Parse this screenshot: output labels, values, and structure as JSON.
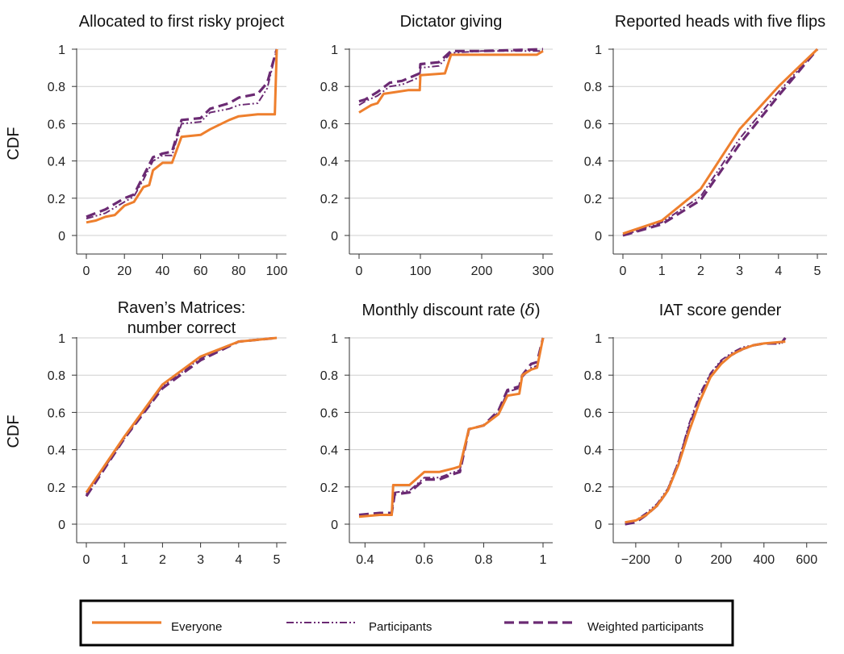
{
  "colors": {
    "everyone": "#ee7f2d",
    "participants": "#6b2a73",
    "weighted": "#6b2a73"
  },
  "y_axis_label": "CDF",
  "legend": {
    "placement": "bottom",
    "items": [
      {
        "label": "Everyone",
        "style": "solid"
      },
      {
        "label": "Participants",
        "style": "dashdot"
      },
      {
        "label": "Weighted participants",
        "style": "dashed"
      }
    ]
  },
  "chart_data": [
    {
      "type": "line",
      "title": "Allocated to first risky project",
      "xticks": [
        0,
        20,
        40,
        60,
        80,
        100
      ],
      "xlim": [
        0,
        100
      ],
      "ylim": [
        0,
        1
      ],
      "yticks": [
        0,
        0.2,
        0.4,
        0.6,
        0.8,
        1
      ],
      "series": [
        {
          "name": "Everyone",
          "points": [
            [
              0,
              0.07
            ],
            [
              5,
              0.08
            ],
            [
              10,
              0.1
            ],
            [
              15,
              0.11
            ],
            [
              20,
              0.16
            ],
            [
              25,
              0.18
            ],
            [
              30,
              0.26
            ],
            [
              33,
              0.27
            ],
            [
              35,
              0.35
            ],
            [
              40,
              0.39
            ],
            [
              45,
              0.39
            ],
            [
              50,
              0.53
            ],
            [
              60,
              0.54
            ],
            [
              65,
              0.57
            ],
            [
              75,
              0.62
            ],
            [
              80,
              0.64
            ],
            [
              90,
              0.65
            ],
            [
              95,
              0.65
            ],
            [
              99,
              0.65
            ],
            [
              100,
              1.0
            ]
          ]
        },
        {
          "name": "Participants",
          "points": [
            [
              0,
              0.09
            ],
            [
              10,
              0.12
            ],
            [
              20,
              0.18
            ],
            [
              25,
              0.21
            ],
            [
              30,
              0.3
            ],
            [
              35,
              0.4
            ],
            [
              40,
              0.43
            ],
            [
              45,
              0.43
            ],
            [
              50,
              0.6
            ],
            [
              60,
              0.61
            ],
            [
              65,
              0.66
            ],
            [
              75,
              0.68
            ],
            [
              80,
              0.7
            ],
            [
              90,
              0.71
            ],
            [
              95,
              0.79
            ],
            [
              100,
              1.0
            ]
          ]
        },
        {
          "name": "Weighted participants",
          "points": [
            [
              0,
              0.1
            ],
            [
              10,
              0.14
            ],
            [
              20,
              0.2
            ],
            [
              25,
              0.22
            ],
            [
              30,
              0.32
            ],
            [
              35,
              0.42
            ],
            [
              40,
              0.44
            ],
            [
              45,
              0.45
            ],
            [
              50,
              0.62
            ],
            [
              60,
              0.63
            ],
            [
              65,
              0.68
            ],
            [
              75,
              0.71
            ],
            [
              80,
              0.74
            ],
            [
              90,
              0.76
            ],
            [
              95,
              0.82
            ],
            [
              100,
              1.0
            ]
          ]
        }
      ]
    },
    {
      "type": "line",
      "title": "Dictator giving",
      "xticks": [
        0,
        100,
        200,
        300
      ],
      "xlim": [
        0,
        300
      ],
      "ylim": [
        0,
        1
      ],
      "yticks": [
        0,
        0.2,
        0.4,
        0.6,
        0.8,
        1
      ],
      "series": [
        {
          "name": "Everyone",
          "points": [
            [
              0,
              0.66
            ],
            [
              10,
              0.68
            ],
            [
              20,
              0.7
            ],
            [
              30,
              0.71
            ],
            [
              40,
              0.76
            ],
            [
              60,
              0.77
            ],
            [
              80,
              0.78
            ],
            [
              99,
              0.78
            ],
            [
              100,
              0.86
            ],
            [
              140,
              0.87
            ],
            [
              150,
              0.97
            ],
            [
              200,
              0.97
            ],
            [
              290,
              0.97
            ],
            [
              300,
              0.99
            ]
          ]
        },
        {
          "name": "Participants",
          "points": [
            [
              0,
              0.7
            ],
            [
              10,
              0.72
            ],
            [
              30,
              0.75
            ],
            [
              50,
              0.8
            ],
            [
              70,
              0.81
            ],
            [
              99,
              0.85
            ],
            [
              100,
              0.9
            ],
            [
              130,
              0.91
            ],
            [
              150,
              0.98
            ],
            [
              200,
              0.99
            ],
            [
              300,
              0.99
            ]
          ]
        },
        {
          "name": "Weighted participants",
          "points": [
            [
              0,
              0.72
            ],
            [
              10,
              0.73
            ],
            [
              30,
              0.77
            ],
            [
              50,
              0.82
            ],
            [
              70,
              0.83
            ],
            [
              99,
              0.87
            ],
            [
              100,
              0.92
            ],
            [
              130,
              0.93
            ],
            [
              150,
              0.99
            ],
            [
              200,
              0.99
            ],
            [
              300,
              1.0
            ]
          ]
        }
      ]
    },
    {
      "type": "line",
      "title": "Reported heads with five flips",
      "xticks": [
        0,
        1,
        2,
        3,
        4,
        5
      ],
      "xlim": [
        0,
        5
      ],
      "ylim": [
        0,
        1
      ],
      "yticks": [
        0,
        0.2,
        0.4,
        0.6,
        0.8,
        1
      ],
      "series": [
        {
          "name": "Everyone",
          "points": [
            [
              0,
              0.01
            ],
            [
              1,
              0.08
            ],
            [
              2,
              0.25
            ],
            [
              3,
              0.57
            ],
            [
              4,
              0.8
            ],
            [
              5,
              1.0
            ]
          ]
        },
        {
          "name": "Participants",
          "points": [
            [
              0,
              0.0
            ],
            [
              1,
              0.07
            ],
            [
              2,
              0.21
            ],
            [
              3,
              0.52
            ],
            [
              4,
              0.77
            ],
            [
              5,
              1.0
            ]
          ]
        },
        {
          "name": "Weighted participants",
          "points": [
            [
              0,
              0.0
            ],
            [
              1,
              0.06
            ],
            [
              2,
              0.19
            ],
            [
              3,
              0.49
            ],
            [
              4,
              0.75
            ],
            [
              5,
              1.0
            ]
          ]
        }
      ]
    },
    {
      "type": "line",
      "title": "Raven’s Matrices:",
      "title2": "number correct",
      "xticks": [
        0,
        1,
        2,
        3,
        4,
        5
      ],
      "xlim": [
        0,
        5
      ],
      "ylim": [
        0,
        1
      ],
      "yticks": [
        0,
        0.2,
        0.4,
        0.6,
        0.8,
        1
      ],
      "series": [
        {
          "name": "Everyone",
          "points": [
            [
              0,
              0.17
            ],
            [
              1,
              0.47
            ],
            [
              2,
              0.75
            ],
            [
              3,
              0.9
            ],
            [
              4,
              0.98
            ],
            [
              5,
              1.0
            ]
          ]
        },
        {
          "name": "Participants",
          "points": [
            [
              0,
              0.16
            ],
            [
              1,
              0.46
            ],
            [
              2,
              0.74
            ],
            [
              3,
              0.89
            ],
            [
              4,
              0.98
            ],
            [
              5,
              1.0
            ]
          ]
        },
        {
          "name": "Weighted participants",
          "points": [
            [
              0,
              0.15
            ],
            [
              1,
              0.46
            ],
            [
              2,
              0.73
            ],
            [
              3,
              0.88
            ],
            [
              4,
              0.98
            ],
            [
              5,
              1.0
            ]
          ]
        }
      ]
    },
    {
      "type": "line",
      "title": "Monthly discount rate (",
      "title_symbol": "δ",
      "title_end": ")",
      "xticks": [
        0.4,
        0.6,
        0.8,
        1
      ],
      "xlim": [
        0.38,
        1.0
      ],
      "ylim": [
        0,
        1
      ],
      "yticks": [
        0,
        0.2,
        0.4,
        0.6,
        0.8,
        1
      ],
      "series": [
        {
          "name": "Everyone",
          "points": [
            [
              0.38,
              0.04
            ],
            [
              0.45,
              0.05
            ],
            [
              0.49,
              0.05
            ],
            [
              0.495,
              0.21
            ],
            [
              0.55,
              0.21
            ],
            [
              0.6,
              0.28
            ],
            [
              0.65,
              0.28
            ],
            [
              0.7,
              0.3
            ],
            [
              0.72,
              0.31
            ],
            [
              0.75,
              0.51
            ],
            [
              0.8,
              0.53
            ],
            [
              0.85,
              0.59
            ],
            [
              0.88,
              0.69
            ],
            [
              0.92,
              0.7
            ],
            [
              0.93,
              0.8
            ],
            [
              0.96,
              0.83
            ],
            [
              0.98,
              0.84
            ],
            [
              1.0,
              1.0
            ]
          ]
        },
        {
          "name": "Participants",
          "points": [
            [
              0.38,
              0.04
            ],
            [
              0.45,
              0.05
            ],
            [
              0.49,
              0.05
            ],
            [
              0.5,
              0.17
            ],
            [
              0.55,
              0.18
            ],
            [
              0.6,
              0.25
            ],
            [
              0.65,
              0.25
            ],
            [
              0.7,
              0.28
            ],
            [
              0.72,
              0.29
            ],
            [
              0.75,
              0.51
            ],
            [
              0.8,
              0.53
            ],
            [
              0.85,
              0.6
            ],
            [
              0.88,
              0.71
            ],
            [
              0.92,
              0.73
            ],
            [
              0.93,
              0.79
            ],
            [
              0.96,
              0.84
            ],
            [
              0.98,
              0.85
            ],
            [
              1.0,
              1.0
            ]
          ]
        },
        {
          "name": "Weighted participants",
          "points": [
            [
              0.38,
              0.05
            ],
            [
              0.45,
              0.06
            ],
            [
              0.49,
              0.06
            ],
            [
              0.5,
              0.16
            ],
            [
              0.55,
              0.17
            ],
            [
              0.6,
              0.24
            ],
            [
              0.65,
              0.24
            ],
            [
              0.7,
              0.27
            ],
            [
              0.72,
              0.28
            ],
            [
              0.75,
              0.51
            ],
            [
              0.8,
              0.53
            ],
            [
              0.85,
              0.61
            ],
            [
              0.88,
              0.72
            ],
            [
              0.92,
              0.74
            ],
            [
              0.93,
              0.8
            ],
            [
              0.96,
              0.86
            ],
            [
              0.98,
              0.87
            ],
            [
              1.0,
              1.0
            ]
          ]
        }
      ]
    },
    {
      "type": "line",
      "title": "IAT score gender",
      "xticks": [
        -200,
        0,
        200,
        400,
        600
      ],
      "xtick_labels": [
        "−200",
        "0",
        "200",
        "400",
        "600"
      ],
      "xlim": [
        -260,
        650
      ],
      "ylim": [
        0,
        1
      ],
      "yticks": [
        0,
        0.2,
        0.4,
        0.6,
        0.8,
        1
      ],
      "series": [
        {
          "name": "Everyone",
          "points": [
            [
              -250,
              0.01
            ],
            [
              -200,
              0.02
            ],
            [
              -150,
              0.05
            ],
            [
              -100,
              0.1
            ],
            [
              -50,
              0.18
            ],
            [
              0,
              0.32
            ],
            [
              50,
              0.5
            ],
            [
              100,
              0.66
            ],
            [
              150,
              0.79
            ],
            [
              200,
              0.86
            ],
            [
              250,
              0.91
            ],
            [
              300,
              0.94
            ],
            [
              350,
              0.96
            ],
            [
              400,
              0.97
            ],
            [
              500,
              0.98
            ]
          ]
        },
        {
          "name": "Participants",
          "points": [
            [
              -250,
              0.01
            ],
            [
              -200,
              0.02
            ],
            [
              -150,
              0.06
            ],
            [
              -100,
              0.11
            ],
            [
              -50,
              0.19
            ],
            [
              0,
              0.34
            ],
            [
              50,
              0.54
            ],
            [
              100,
              0.7
            ],
            [
              150,
              0.81
            ],
            [
              200,
              0.88
            ],
            [
              250,
              0.92
            ],
            [
              300,
              0.95
            ],
            [
              350,
              0.96
            ],
            [
              400,
              0.97
            ],
            [
              480,
              0.97
            ],
            [
              500,
              1.0
            ]
          ]
        },
        {
          "name": "Weighted participants",
          "points": [
            [
              -250,
              0.0
            ],
            [
              -200,
              0.01
            ],
            [
              -150,
              0.05
            ],
            [
              -100,
              0.1
            ],
            [
              -50,
              0.18
            ],
            [
              0,
              0.33
            ],
            [
              50,
              0.52
            ],
            [
              100,
              0.68
            ],
            [
              150,
              0.8
            ],
            [
              200,
              0.87
            ],
            [
              250,
              0.91
            ],
            [
              300,
              0.94
            ],
            [
              350,
              0.96
            ],
            [
              400,
              0.97
            ],
            [
              480,
              0.97
            ],
            [
              500,
              1.0
            ]
          ]
        }
      ]
    }
  ]
}
